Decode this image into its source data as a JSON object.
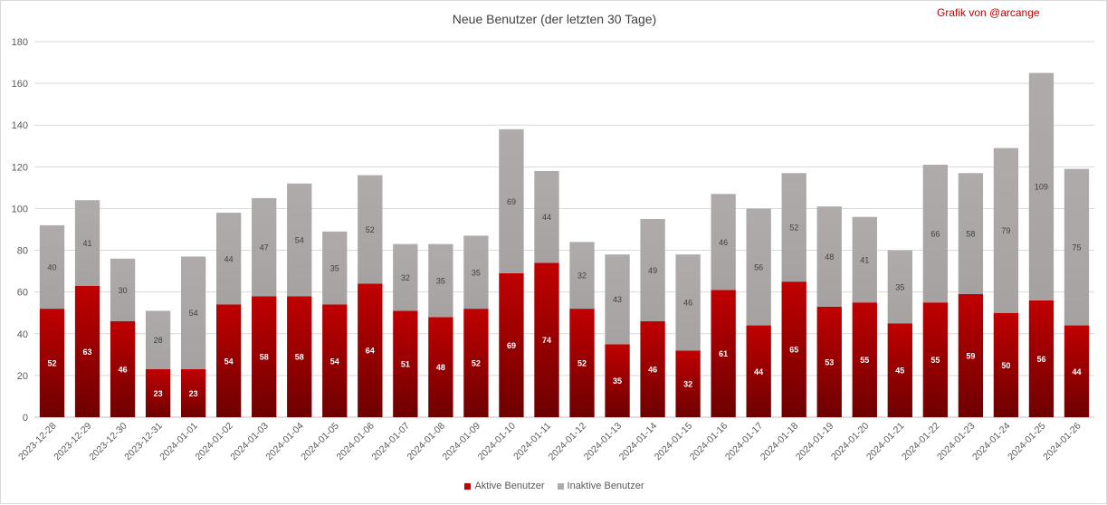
{
  "chart_data": {
    "type": "bar",
    "stacked": true,
    "title": "Neue Benutzer (der letzten 30 Tage)",
    "credit": "Grafik von @arcange",
    "xlabel": "",
    "ylabel": "",
    "ylim": [
      0,
      180
    ],
    "yticks": [
      0,
      20,
      40,
      60,
      80,
      100,
      120,
      140,
      160,
      180
    ],
    "grid": true,
    "legend_position": "bottom",
    "categories": [
      "2023-12-28",
      "2023-12-29",
      "2023-12-30",
      "2023-12-31",
      "2024-01-01",
      "2024-01-02",
      "2024-01-03",
      "2024-01-04",
      "2024-01-05",
      "2024-01-06",
      "2024-01-07",
      "2024-01-08",
      "2024-01-09",
      "2024-01-10",
      "2024-01-11",
      "2024-01-12",
      "2024-01-13",
      "2024-01-14",
      "2024-01-15",
      "2024-01-16",
      "2024-01-17",
      "2024-01-18",
      "2024-01-19",
      "2024-01-20",
      "2024-01-21",
      "2024-01-22",
      "2024-01-23",
      "2024-01-24",
      "2024-01-25",
      "2024-01-26"
    ],
    "series": [
      {
        "name": "Aktive Benutzer",
        "color": "#c00000",
        "values": [
          52,
          63,
          46,
          23,
          23,
          54,
          58,
          58,
          54,
          64,
          51,
          48,
          52,
          69,
          74,
          52,
          35,
          46,
          32,
          61,
          44,
          65,
          53,
          55,
          45,
          55,
          59,
          50,
          56,
          44
        ]
      },
      {
        "name": "Inaktive Benutzer",
        "color": "#afabab",
        "values": [
          40,
          41,
          30,
          28,
          54,
          44,
          47,
          54,
          35,
          52,
          32,
          35,
          35,
          69,
          44,
          32,
          43,
          49,
          46,
          46,
          56,
          52,
          48,
          41,
          35,
          66,
          58,
          79,
          109,
          75
        ]
      }
    ]
  }
}
